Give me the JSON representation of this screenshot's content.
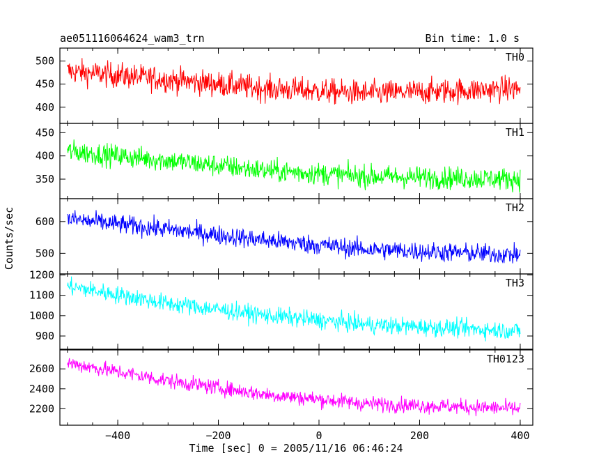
{
  "chart_data": {
    "type": "line",
    "title": "ae051116064624_wam3_trn",
    "bin_time_label": "Bin time: 1.0 s",
    "xlabel": "Time [sec] 0 = 2005/11/16 06:46:24",
    "ylabel": "Counts/sec",
    "xlim": [
      -515,
      425
    ],
    "x_ticks": [
      -400,
      -200,
      0,
      200,
      400
    ],
    "x_tick_labels": [
      "−400",
      "−200",
      "0",
      "200",
      "400"
    ],
    "x_range_data": [
      -500,
      400
    ],
    "panels": [
      {
        "name": "TH0",
        "color": "#ff0000",
        "ylim": [
          365,
          528
        ],
        "y_ticks": [
          400,
          450,
          500
        ],
        "y_tick_labels": [
          "400",
          "450",
          "500"
        ],
        "trend": [
          {
            "x": -500,
            "y": 478
          },
          {
            "x": -300,
            "y": 460
          },
          {
            "x": -100,
            "y": 440
          },
          {
            "x": 100,
            "y": 430
          },
          {
            "x": 400,
            "y": 440
          }
        ],
        "noise_amplitude": 25
      },
      {
        "name": "TH1",
        "color": "#00ff00",
        "ylim": [
          308,
          470
        ],
        "y_ticks": [
          350,
          400,
          450
        ],
        "y_tick_labels": [
          "350",
          "400",
          "450"
        ],
        "trend": [
          {
            "x": -500,
            "y": 410
          },
          {
            "x": -300,
            "y": 390
          },
          {
            "x": -100,
            "y": 368
          },
          {
            "x": 100,
            "y": 356
          },
          {
            "x": 400,
            "y": 350
          }
        ],
        "noise_amplitude": 22
      },
      {
        "name": "TH2",
        "color": "#0000ff",
        "ylim": [
          435,
          672
        ],
        "y_ticks": [
          500,
          600
        ],
        "y_tick_labels": [
          "500",
          "600"
        ],
        "trend": [
          {
            "x": -500,
            "y": 608
          },
          {
            "x": -300,
            "y": 575
          },
          {
            "x": -100,
            "y": 540
          },
          {
            "x": 100,
            "y": 512
          },
          {
            "x": 400,
            "y": 495
          }
        ],
        "noise_amplitude": 28
      },
      {
        "name": "TH3",
        "color": "#00ffff",
        "ylim": [
          835,
          1205
        ],
        "y_ticks": [
          900,
          1000,
          1100,
          1200
        ],
        "y_tick_labels": [
          "900",
          "1000",
          "1100",
          "1200"
        ],
        "trend": [
          {
            "x": -500,
            "y": 1145
          },
          {
            "x": -300,
            "y": 1060
          },
          {
            "x": -100,
            "y": 1000
          },
          {
            "x": 100,
            "y": 955
          },
          {
            "x": 400,
            "y": 925
          }
        ],
        "noise_amplitude": 40
      },
      {
        "name": "TH0123",
        "color": "#ff00ff",
        "ylim": [
          2035,
          2790
        ],
        "y_ticks": [
          2200,
          2400,
          2600
        ],
        "y_tick_labels": [
          "2200",
          "2400",
          "2600"
        ],
        "trend": [
          {
            "x": -500,
            "y": 2660
          },
          {
            "x": -300,
            "y": 2480
          },
          {
            "x": -100,
            "y": 2340
          },
          {
            "x": 100,
            "y": 2250
          },
          {
            "x": 400,
            "y": 2200
          }
        ],
        "noise_amplitude": 70
      }
    ]
  }
}
